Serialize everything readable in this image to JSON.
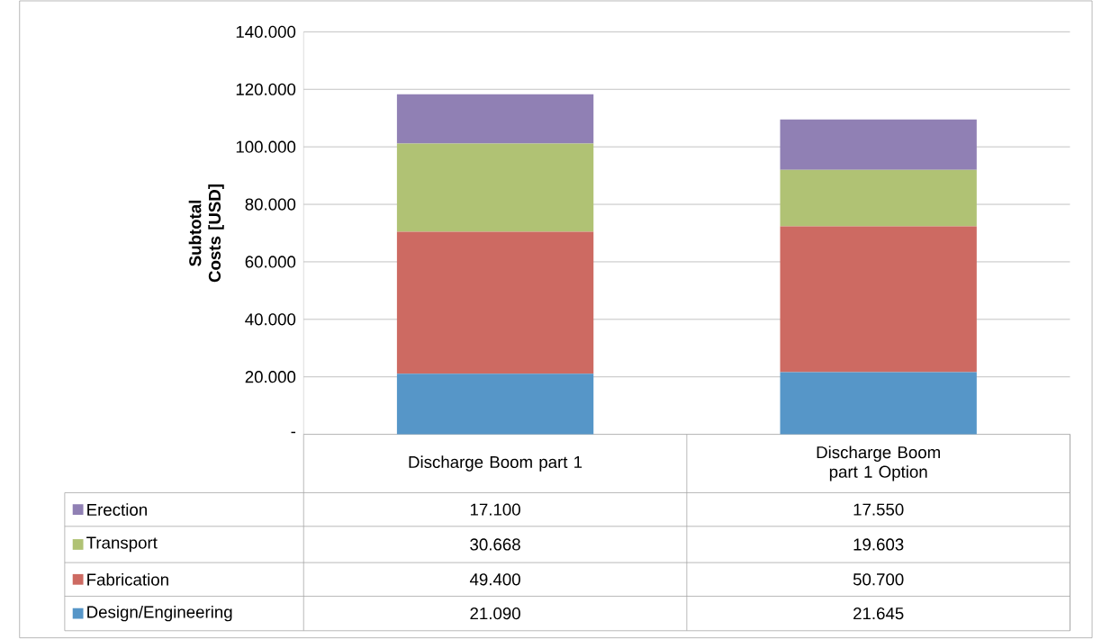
{
  "chart_data": {
    "type": "bar",
    "stacked": true,
    "ylabel": "Subtotal Costs [USD]",
    "categories": [
      "Discharge Boom part 1",
      "Discharge Boom part 1 Option"
    ],
    "series": [
      {
        "name": "Design/Engineering",
        "color": "#5696c8",
        "values": [
          21090,
          21645
        ],
        "value_labels": [
          "21.090",
          "21.645"
        ]
      },
      {
        "name": "Fabrication",
        "color": "#cd6a62",
        "values": [
          49400,
          50700
        ],
        "value_labels": [
          "49.400",
          "50.700"
        ]
      },
      {
        "name": "Transport",
        "color": "#b0c274",
        "values": [
          30668,
          19603
        ],
        "value_labels": [
          "30.668",
          "19.603"
        ]
      },
      {
        "name": "Erection",
        "color": "#9080b4",
        "values": [
          17100,
          17550
        ],
        "value_labels": [
          "17.100",
          "17.550"
        ]
      }
    ],
    "ylim": [
      0,
      140000
    ],
    "yticks": [
      {
        "value": 0,
        "label": "-"
      },
      {
        "value": 20000,
        "label": "20.000"
      },
      {
        "value": 40000,
        "label": "40.000"
      },
      {
        "value": 60000,
        "label": "60.000"
      },
      {
        "value": 80000,
        "label": "80.000"
      },
      {
        "value": 100000,
        "label": "100.000"
      },
      {
        "value": 120000,
        "label": "120.000"
      },
      {
        "value": 140000,
        "label": "140.000"
      }
    ],
    "grid": "y",
    "legend": "bottom"
  }
}
